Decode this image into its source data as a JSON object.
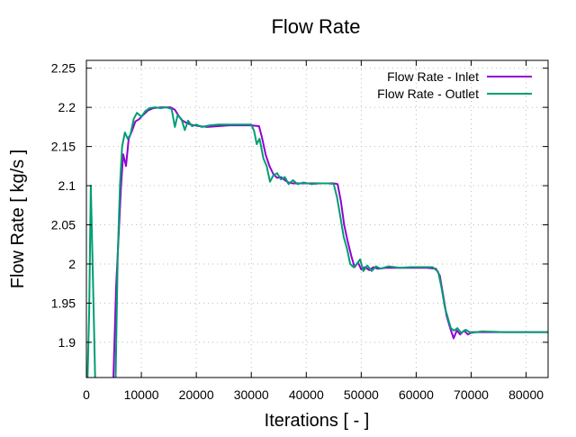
{
  "chart_data": {
    "type": "line",
    "title": "Flow Rate",
    "xlabel": "Iterations [ - ]",
    "ylabel": "Flow Rate [ kg/s ]",
    "xlim": [
      0,
      84000
    ],
    "ylim": [
      1.855,
      2.26
    ],
    "xticks": [
      0,
      10000,
      20000,
      30000,
      40000,
      50000,
      60000,
      70000,
      80000
    ],
    "yticks": [
      1.9,
      1.95,
      2.0,
      2.05,
      2.1,
      2.15,
      2.2,
      2.25
    ],
    "xtick_labels": [
      "0",
      "10000",
      "20000",
      "30000",
      "40000",
      "50000",
      "60000",
      "70000",
      "80000"
    ],
    "ytick_labels": [
      "1.9",
      "1.95",
      "2",
      "2.05",
      "2.1",
      "2.15",
      "2.2",
      "2.25"
    ],
    "grid": true,
    "legend_position": "top-right",
    "series": [
      {
        "name": "Flow Rate - Inlet",
        "color": "#9400d3",
        "points": [
          [
            4900,
            1.85
          ],
          [
            5400,
            1.97
          ],
          [
            5900,
            2.04
          ],
          [
            6300,
            2.1
          ],
          [
            6700,
            2.14
          ],
          [
            7200,
            2.125
          ],
          [
            7700,
            2.16
          ],
          [
            8300,
            2.17
          ],
          [
            8900,
            2.182
          ],
          [
            9600,
            2.185
          ],
          [
            10300,
            2.19
          ],
          [
            11200,
            2.196
          ],
          [
            12200,
            2.199
          ],
          [
            13600,
            2.2
          ],
          [
            15300,
            2.2
          ],
          [
            16100,
            2.197
          ],
          [
            16700,
            2.19
          ],
          [
            17300,
            2.184
          ],
          [
            18000,
            2.181
          ],
          [
            19000,
            2.178
          ],
          [
            20500,
            2.176
          ],
          [
            22000,
            2.175
          ],
          [
            24000,
            2.176
          ],
          [
            26000,
            2.177
          ],
          [
            28000,
            2.177
          ],
          [
            30000,
            2.177
          ],
          [
            31400,
            2.176
          ],
          [
            32000,
            2.16
          ],
          [
            32600,
            2.14
          ],
          [
            33300,
            2.125
          ],
          [
            34000,
            2.115
          ],
          [
            34700,
            2.11
          ],
          [
            35400,
            2.111
          ],
          [
            36100,
            2.107
          ],
          [
            36800,
            2.104
          ],
          [
            37600,
            2.103
          ],
          [
            39000,
            2.103
          ],
          [
            41000,
            2.103
          ],
          [
            43000,
            2.103
          ],
          [
            45000,
            2.103
          ],
          [
            45700,
            2.102
          ],
          [
            46300,
            2.08
          ],
          [
            46900,
            2.05
          ],
          [
            47500,
            2.03
          ],
          [
            48200,
            2.01
          ],
          [
            48800,
            1.996
          ],
          [
            49400,
            2.002
          ],
          [
            50000,
            1.993
          ],
          [
            50700,
            1.996
          ],
          [
            51500,
            1.992
          ],
          [
            52200,
            1.996
          ],
          [
            53000,
            1.994
          ],
          [
            54500,
            1.995
          ],
          [
            56000,
            1.995
          ],
          [
            58000,
            1.995
          ],
          [
            60000,
            1.995
          ],
          [
            62000,
            1.995
          ],
          [
            63600,
            1.994
          ],
          [
            64300,
            1.985
          ],
          [
            64900,
            1.96
          ],
          [
            65500,
            1.935
          ],
          [
            66100,
            1.92
          ],
          [
            66800,
            1.905
          ],
          [
            67400,
            1.915
          ],
          [
            68000,
            1.91
          ],
          [
            68700,
            1.915
          ],
          [
            69400,
            1.91
          ],
          [
            70200,
            1.913
          ],
          [
            72000,
            1.913
          ],
          [
            76000,
            1.913
          ],
          [
            80000,
            1.913
          ],
          [
            84000,
            1.913
          ]
        ]
      },
      {
        "name": "Flow Rate - Outlet",
        "color": "#009e73",
        "points": [
          [
            200,
            1.85
          ],
          [
            500,
            1.94
          ],
          [
            800,
            2.1
          ],
          [
            1200,
            1.98
          ],
          [
            1600,
            1.85
          ],
          [
            5300,
            1.85
          ],
          [
            5700,
            2.01
          ],
          [
            6100,
            2.1
          ],
          [
            6500,
            2.15
          ],
          [
            7000,
            2.168
          ],
          [
            7500,
            2.16
          ],
          [
            8000,
            2.165
          ],
          [
            8600,
            2.185
          ],
          [
            9200,
            2.193
          ],
          [
            10000,
            2.188
          ],
          [
            10700,
            2.195
          ],
          [
            11500,
            2.199
          ],
          [
            12500,
            2.2
          ],
          [
            13500,
            2.199
          ],
          [
            14500,
            2.2
          ],
          [
            15500,
            2.198
          ],
          [
            16100,
            2.175
          ],
          [
            16600,
            2.19
          ],
          [
            17300,
            2.185
          ],
          [
            17900,
            2.171
          ],
          [
            18500,
            2.183
          ],
          [
            19200,
            2.176
          ],
          [
            20000,
            2.178
          ],
          [
            21000,
            2.175
          ],
          [
            22500,
            2.177
          ],
          [
            24000,
            2.178
          ],
          [
            26000,
            2.178
          ],
          [
            28000,
            2.178
          ],
          [
            30000,
            2.178
          ],
          [
            30500,
            2.17
          ],
          [
            31000,
            2.153
          ],
          [
            31500,
            2.16
          ],
          [
            32200,
            2.135
          ],
          [
            32800,
            2.125
          ],
          [
            33400,
            2.105
          ],
          [
            34000,
            2.113
          ],
          [
            34700,
            2.116
          ],
          [
            35400,
            2.108
          ],
          [
            36100,
            2.111
          ],
          [
            36800,
            2.102
          ],
          [
            37600,
            2.107
          ],
          [
            38400,
            2.102
          ],
          [
            39500,
            2.104
          ],
          [
            41000,
            2.102
          ],
          [
            42500,
            2.103
          ],
          [
            44000,
            2.103
          ],
          [
            45000,
            2.102
          ],
          [
            45600,
            2.085
          ],
          [
            46200,
            2.06
          ],
          [
            46800,
            2.035
          ],
          [
            47400,
            2.02
          ],
          [
            48000,
            2.0
          ],
          [
            48600,
            1.996
          ],
          [
            49200,
            2.0
          ],
          [
            49800,
            2.006
          ],
          [
            50400,
            1.991
          ],
          [
            51100,
            1.998
          ],
          [
            51900,
            1.991
          ],
          [
            52700,
            1.997
          ],
          [
            53500,
            1.994
          ],
          [
            55000,
            1.997
          ],
          [
            57000,
            1.995
          ],
          [
            59000,
            1.996
          ],
          [
            61000,
            1.996
          ],
          [
            63000,
            1.996
          ],
          [
            64000,
            1.99
          ],
          [
            64600,
            1.97
          ],
          [
            65200,
            1.945
          ],
          [
            65800,
            1.93
          ],
          [
            66300,
            1.918
          ],
          [
            66900,
            1.915
          ],
          [
            67500,
            1.918
          ],
          [
            68200,
            1.912
          ],
          [
            69000,
            1.916
          ],
          [
            70000,
            1.912
          ],
          [
            72000,
            1.914
          ],
          [
            76000,
            1.913
          ],
          [
            80000,
            1.913
          ],
          [
            84000,
            1.913
          ]
        ]
      }
    ]
  }
}
